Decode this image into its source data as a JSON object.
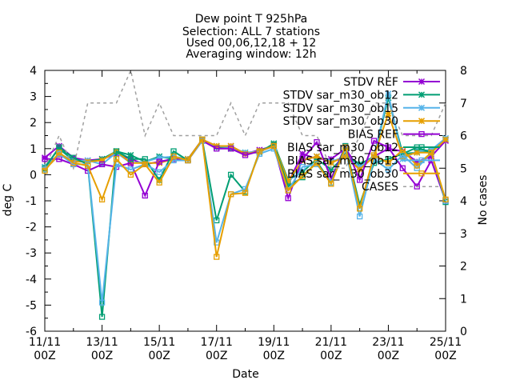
{
  "chart_data": {
    "type": "line",
    "title_lines": [
      "Dew point T 925hPa",
      "Selection: ALL      7 stations",
      "Used 00,06,12,18 + 12",
      "Averaging window: 12h"
    ],
    "xlabel": "Date",
    "ylabel": "deg C",
    "y2label": "No cases",
    "x_ticks": [
      {
        "day": 0,
        "l1": "11/11",
        "l2": "00Z"
      },
      {
        "day": 2,
        "l1": "13/11",
        "l2": "00Z"
      },
      {
        "day": 4,
        "l1": "15/11",
        "l2": "00Z"
      },
      {
        "day": 6,
        "l1": "17/11",
        "l2": "00Z"
      },
      {
        "day": 8,
        "l1": "19/11",
        "l2": "00Z"
      },
      {
        "day": 10,
        "l1": "21/11",
        "l2": "00Z"
      },
      {
        "day": 12,
        "l1": "23/11",
        "l2": "00Z"
      },
      {
        "day": 14,
        "l1": "25/11",
        "l2": "00Z"
      }
    ],
    "xlim_days": [
      0,
      14
    ],
    "ylim": [
      -6,
      4
    ],
    "y_ticks": [
      -6,
      -5,
      -4,
      -3,
      -2,
      -1,
      0,
      1,
      2,
      3,
      4
    ],
    "y2lim": [
      0,
      8
    ],
    "y2_ticks": [
      0,
      1,
      2,
      3,
      4,
      5,
      6,
      7,
      8
    ],
    "grid": false,
    "legend_position": "top-right",
    "x_days": [
      0,
      0.5,
      1,
      1.5,
      2,
      2.5,
      3,
      3.5,
      4,
      4.5,
      5,
      5.5,
      6,
      6.5,
      7,
      7.5,
      8,
      8.5,
      9,
      9.5,
      10,
      10.5,
      11,
      11.5,
      12,
      12.5,
      13,
      13.5,
      14
    ],
    "series": [
      {
        "name": "STDV REF",
        "color": "#9400d3",
        "marker": "x",
        "dash": false,
        "values": [
          0.65,
          1.1,
          0.65,
          0.55,
          0.6,
          0.8,
          0.6,
          0.4,
          0.5,
          0.6,
          0.6,
          1.35,
          1.1,
          1.1,
          0.8,
          0.95,
          1.1,
          -0.3,
          0.8,
          0.6,
          0.6,
          1.0,
          0.2,
          0.7,
          1.0,
          0.9,
          0.5,
          0.7,
          1.3
        ]
      },
      {
        "name": "STDV sar_m30_ob12",
        "color": "#009e73",
        "marker": "x",
        "dash": false,
        "values": [
          0.3,
          1.0,
          0.55,
          0.5,
          0.6,
          0.9,
          0.75,
          0.5,
          0.7,
          0.6,
          0.6,
          1.3,
          1.05,
          1.0,
          0.85,
          0.85,
          1.2,
          -0.2,
          0.1,
          0.6,
          0.2,
          0.75,
          0.4,
          0.7,
          2.95,
          0.8,
          0.85,
          0.9,
          1.35
        ]
      },
      {
        "name": "STDV sar_m30_ob15",
        "color": "#56b4e9",
        "marker": "x",
        "dash": false,
        "values": [
          0.3,
          0.8,
          0.55,
          0.55,
          0.4,
          0.85,
          0.45,
          0.5,
          0.65,
          0.7,
          0.6,
          1.3,
          1.1,
          1.05,
          0.85,
          0.9,
          1.1,
          -0.35,
          0.55,
          0.7,
          0.5,
          0.7,
          0.3,
          0.7,
          3.1,
          0.6,
          0.9,
          0.95,
          1.4
        ]
      },
      {
        "name": "STDV sar_m30_ob30",
        "color": "#e69f00",
        "marker": "x",
        "dash": false,
        "values": [
          0.2,
          0.75,
          0.5,
          0.5,
          0.55,
          0.9,
          0.45,
          0.45,
          0.45,
          0.6,
          0.6,
          1.35,
          1.1,
          1.1,
          0.8,
          0.9,
          1.15,
          -0.25,
          0.55,
          0.7,
          0.45,
          0.7,
          0.2,
          0.7,
          2.35,
          0.7,
          0.85,
          0.85,
          1.35
        ]
      },
      {
        "name": "BIAS REF",
        "color": "#9400d3",
        "marker": "s",
        "dash": false,
        "values": [
          0.6,
          0.6,
          0.4,
          0.15,
          0.4,
          0.3,
          0.45,
          -0.8,
          0.5,
          0.6,
          0.55,
          1.3,
          1.0,
          1.0,
          0.75,
          0.9,
          1.1,
          -0.9,
          0.6,
          1.25,
          -0.15,
          1.1,
          -0.2,
          1.3,
          1.05,
          0.25,
          -0.45,
          0.55,
          -1.0
        ]
      },
      {
        "name": "BIAS sar_m30_ob12",
        "color": "#009e73",
        "marker": "s",
        "dash": false,
        "values": [
          0.25,
          1.05,
          0.65,
          0.4,
          -5.45,
          0.9,
          0.6,
          0.6,
          -0.2,
          0.9,
          0.55,
          1.35,
          -1.75,
          0.0,
          -0.65,
          0.9,
          1.15,
          -0.45,
          -0.1,
          0.5,
          -0.3,
          1.1,
          -1.15,
          0.45,
          0.6,
          0.8,
          1.05,
          0.85,
          -1.05
        ]
      },
      {
        "name": "BIAS sar_m30_ob15",
        "color": "#56b4e9",
        "marker": "s",
        "dash": false,
        "values": [
          0.2,
          0.8,
          0.4,
          0.4,
          -4.9,
          0.4,
          0.2,
          0.4,
          0.1,
          0.55,
          0.55,
          1.3,
          -2.6,
          -0.75,
          -0.55,
          0.8,
          1.0,
          -0.6,
          0.3,
          0.4,
          -0.3,
          1.0,
          -1.6,
          0.6,
          0.2,
          0.75,
          0.25,
          0.85,
          -1.0
        ]
      },
      {
        "name": "BIAS sar_m30_ob30",
        "color": "#e69f00",
        "marker": "s",
        "dash": false,
        "values": [
          0.15,
          0.85,
          0.45,
          0.35,
          -0.95,
          0.6,
          0.0,
          0.4,
          -0.3,
          0.7,
          0.55,
          1.35,
          -3.15,
          -0.75,
          -0.7,
          0.9,
          1.1,
          -0.6,
          -0.05,
          0.45,
          -0.35,
          1.05,
          -1.3,
          0.75,
          0.45,
          0.95,
          0.35,
          0.85,
          -0.95
        ]
      },
      {
        "name": "CASES",
        "color": "#a0a0a0",
        "marker": "none",
        "dash": true,
        "axis": "y2",
        "values": [
          5,
          6,
          5,
          7,
          7,
          7,
          8,
          6,
          7,
          6,
          6,
          6,
          6,
          7,
          6,
          7,
          7,
          7,
          6,
          6,
          5,
          5,
          6,
          7,
          7,
          6,
          6,
          6,
          7
        ]
      }
    ]
  }
}
